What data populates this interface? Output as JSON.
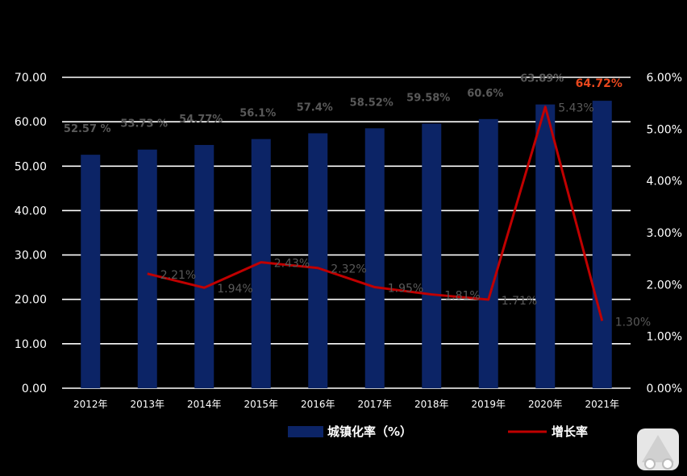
{
  "chart_data": {
    "type": "bar",
    "categories": [
      "2012年",
      "2013年",
      "2014年",
      "2015年",
      "2016年",
      "2017年",
      "2018年",
      "2019年",
      "2020年",
      "2021年"
    ],
    "y_left_ticks": [
      "0.00",
      "10.00",
      "20.00",
      "30.00",
      "40.00",
      "50.00",
      "60.00",
      "70.00"
    ],
    "y_right_ticks": [
      "0.00%",
      "1.00%",
      "2.00%",
      "3.00%",
      "4.00%",
      "5.00%",
      "6.00%"
    ],
    "ylim_left": [
      0,
      70
    ],
    "ylim_right": [
      0,
      6
    ],
    "grid": true,
    "legend_position": "bottom",
    "series": [
      {
        "name": "城镇化率（%）",
        "type": "bar",
        "axis": "left",
        "color": "#0c2466",
        "values": [
          52.57,
          53.73,
          54.77,
          56.1,
          57.4,
          58.52,
          59.58,
          60.6,
          63.89,
          64.72
        ],
        "labels": [
          "52.57 %",
          "53.73 %",
          "54.77%",
          "56.1%",
          "57.4%",
          "58.52%",
          "59.58%",
          "60.6%",
          "63.89%",
          "64.72%"
        ],
        "highlight_label_color": "#e8471d"
      },
      {
        "name": "增长率",
        "type": "line",
        "axis": "right",
        "color": "#c00000",
        "values": [
          null,
          2.21,
          1.94,
          2.43,
          2.32,
          1.95,
          1.81,
          1.71,
          5.43,
          1.3
        ],
        "labels": [
          "",
          "2.21%",
          "1.94%",
          "2.43%",
          "2.32%",
          "1.95%",
          "1.81%",
          "1.71%",
          "5.43%",
          "1.30%"
        ]
      }
    ]
  }
}
